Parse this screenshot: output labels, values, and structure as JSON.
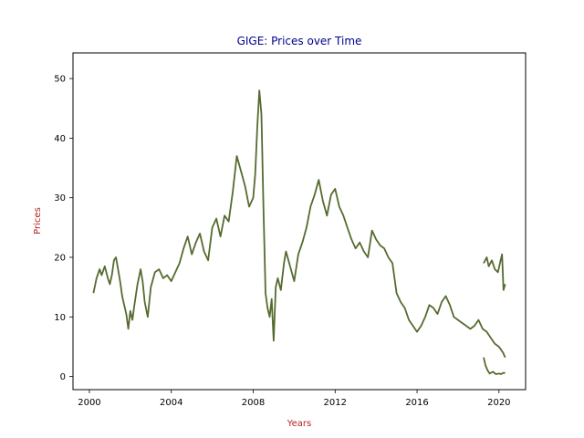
{
  "chart_data": {
    "type": "line",
    "title": "GIGE: Prices over Time",
    "xlabel": "Years",
    "ylabel": "Prices",
    "xlim": [
      1999.2,
      2021.3
    ],
    "ylim": [
      -2.2,
      54.3
    ],
    "xticks": [
      2000,
      2004,
      2008,
      2012,
      2016,
      2020
    ],
    "xtick_labels": [
      "2000",
      "2004",
      "2008",
      "2012",
      "2016",
      "2020"
    ],
    "yticks": [
      0,
      10,
      20,
      30,
      40,
      50
    ],
    "ytick_labels": [
      "0",
      "10",
      "20",
      "30",
      "40",
      "50"
    ],
    "grid": false,
    "colors": {
      "line": "#556b2f",
      "title": "#00008b",
      "axis_label": "#b22222"
    },
    "series": [
      {
        "x": [
          2000.2,
          2000.35,
          2000.5,
          2000.6,
          2000.75,
          2000.9,
          2001.0,
          2001.1,
          2001.2,
          2001.3,
          2001.4,
          2001.5,
          2001.6,
          2001.7,
          2001.8,
          2001.9,
          2002.0,
          2002.1,
          2002.2,
          2002.35,
          2002.5,
          2002.6,
          2002.7,
          2002.85,
          2003.0,
          2003.2,
          2003.4,
          2003.6,
          2003.8,
          2004.0,
          2004.2,
          2004.4,
          2004.6,
          2004.8,
          2005.0,
          2005.2,
          2005.4,
          2005.6,
          2005.8,
          2006.0,
          2006.2,
          2006.4,
          2006.6,
          2006.8,
          2007.0,
          2007.2,
          2007.4,
          2007.6,
          2007.8,
          2008.0,
          2008.1,
          2008.2,
          2008.3,
          2008.4,
          2008.5,
          2008.6,
          2008.7,
          2008.8,
          2008.9,
          2009.0,
          2009.1,
          2009.2,
          2009.35,
          2009.5,
          2009.6,
          2009.8,
          2010.0,
          2010.2,
          2010.4,
          2010.6,
          2010.8,
          2011.0,
          2011.2,
          2011.4,
          2011.6,
          2011.8,
          2012.0,
          2012.2,
          2012.4,
          2012.6,
          2012.8,
          2013.0,
          2013.2,
          2013.4,
          2013.6,
          2013.8,
          2014.0,
          2014.2,
          2014.4,
          2014.6,
          2014.8,
          2015.0,
          2015.2,
          2015.4,
          2015.6,
          2015.8,
          2016.0,
          2016.2,
          2016.4,
          2016.6,
          2016.8,
          2017.0,
          2017.2,
          2017.4,
          2017.6,
          2017.8,
          2018.0,
          2018.2,
          2018.4,
          2018.6,
          2018.8,
          2019.0,
          2019.2,
          2019.4,
          2019.6,
          2019.8,
          2020.0,
          2020.1,
          2020.2,
          2020.3
        ],
        "y": [
          14.0,
          16.5,
          18.0,
          17.0,
          18.5,
          16.5,
          15.5,
          17.0,
          19.5,
          20.0,
          18.0,
          16.0,
          13.5,
          12.0,
          10.5,
          8.0,
          11.0,
          9.5,
          12.0,
          15.5,
          18.0,
          16.0,
          12.5,
          10.0,
          15.0,
          17.5,
          18.0,
          16.5,
          17.0,
          16.0,
          17.5,
          19.0,
          21.5,
          23.5,
          20.5,
          22.5,
          24.0,
          21.0,
          19.5,
          25.0,
          26.5,
          23.5,
          27.0,
          26.0,
          31.0,
          37.0,
          34.5,
          32.0,
          28.5,
          30.0,
          34.0,
          42.0,
          48.0,
          44.0,
          28.5,
          14.0,
          11.5,
          10.0,
          13.0,
          6.0,
          15.0,
          16.5,
          14.5,
          19.0,
          21.0,
          18.5,
          16.0,
          20.5,
          22.5,
          25.0,
          28.5,
          30.5,
          33.0,
          29.5,
          27.0,
          30.5,
          31.5,
          28.5,
          27.0,
          25.0,
          23.0,
          21.5,
          22.5,
          21.0,
          20.0,
          24.5,
          23.0,
          22.0,
          21.5,
          20.0,
          19.0,
          14.0,
          12.5,
          11.5,
          9.5,
          8.5,
          7.5,
          8.5,
          10.0,
          12.0,
          11.5,
          10.5,
          12.5,
          13.5,
          12.0,
          10.0,
          9.5,
          9.0,
          8.5,
          8.0,
          8.5,
          9.5,
          8.0,
          7.5,
          6.5,
          5.5,
          5.0,
          4.5,
          4.0,
          3.2
        ]
      },
      {
        "x": [
          2019.25,
          2019.35,
          2019.45,
          2019.55,
          2019.7,
          2019.85,
          2020.0,
          2020.1,
          2020.2,
          2020.3
        ],
        "y": [
          3.2,
          1.8,
          1.0,
          0.5,
          0.8,
          0.4,
          0.5,
          0.4,
          0.6,
          0.6
        ]
      },
      {
        "x": [
          2019.25,
          2019.4,
          2019.5,
          2019.65,
          2019.8,
          2019.95,
          2020.05,
          2020.15,
          2020.22,
          2020.3
        ],
        "y": [
          19.0,
          20.0,
          18.5,
          19.5,
          18.0,
          17.5,
          19.0,
          20.5,
          14.5,
          15.5
        ]
      }
    ]
  }
}
